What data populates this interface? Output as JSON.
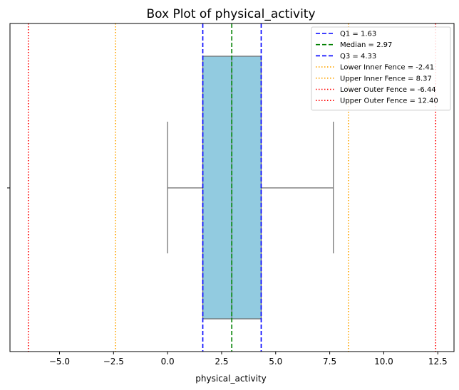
{
  "chart_data": {
    "type": "box",
    "title": "Box Plot of physical_activity",
    "xlabel": "physical_activity",
    "ylabel": "",
    "xlim": [
      -7.29,
      13.25
    ],
    "x_ticks": [
      -5.0,
      -2.5,
      0.0,
      2.5,
      5.0,
      7.5,
      10.0,
      12.5
    ],
    "x_tick_labels": [
      "−5.0",
      "−2.5",
      "0.0",
      "2.5",
      "5.0",
      "7.5",
      "10.0",
      "12.5"
    ],
    "grid": false,
    "legend_position": "top-right",
    "box": {
      "whisker_low": 0.0,
      "q1": 1.63,
      "median": 2.97,
      "q3": 4.33,
      "whisker_high": 7.67,
      "fill_color": "#92cbe0",
      "edge_color": "#6b6b6b"
    },
    "reference_lines": [
      {
        "label": "Q1 = 1.63",
        "value": 1.63,
        "color": "#0000ff",
        "style": "dashed"
      },
      {
        "label": "Median = 2.97",
        "value": 2.97,
        "color": "#008000",
        "style": "dashed"
      },
      {
        "label": "Q3 = 4.33",
        "value": 4.33,
        "color": "#0000ff",
        "style": "dashed"
      },
      {
        "label": "Lower Inner Fence = -2.41",
        "value": -2.41,
        "color": "#ffa500",
        "style": "dotted"
      },
      {
        "label": "Upper Inner Fence = 8.37",
        "value": 8.37,
        "color": "#ffa500",
        "style": "dotted"
      },
      {
        "label": "Lower Outer Fence = -6.44",
        "value": -6.44,
        "color": "#ff0000",
        "style": "dotted"
      },
      {
        "label": "Upper Outer Fence = 12.40",
        "value": 12.4,
        "color": "#ff0000",
        "style": "dotted"
      }
    ]
  }
}
